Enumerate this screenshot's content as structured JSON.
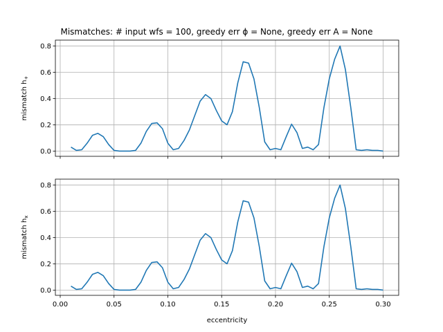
{
  "title": "Mismatches: # input wfs = 100, greedy err ϕ = None, greedy err A = None",
  "chart_data": [
    {
      "type": "line",
      "ylabel": "mismatch h+",
      "ylabel_main": "mismatch h",
      "ylabel_sub": "+",
      "xlabel": "",
      "xlim": [
        -0.0045,
        0.3145
      ],
      "ylim": [
        -0.04,
        0.845
      ],
      "xticks": [
        0.0,
        0.05,
        0.1,
        0.15,
        0.2,
        0.25,
        0.3
      ],
      "xtick_labels": [],
      "yticks": [
        0.0,
        0.2,
        0.4,
        0.6,
        0.8
      ],
      "ytick_labels": [
        "0.0",
        "0.2",
        "0.4",
        "0.6",
        "0.8"
      ],
      "grid": true,
      "color": "#1f77b4",
      "series": [
        {
          "x": [
            0.01,
            0.015,
            0.02,
            0.025,
            0.03,
            0.035,
            0.04,
            0.045,
            0.05,
            0.055,
            0.06,
            0.065,
            0.07,
            0.075,
            0.08,
            0.085,
            0.09,
            0.095,
            0.1,
            0.105,
            0.11,
            0.115,
            0.12,
            0.125,
            0.13,
            0.135,
            0.14,
            0.145,
            0.15,
            0.155,
            0.16,
            0.165,
            0.17,
            0.175,
            0.18,
            0.185,
            0.19,
            0.195,
            0.2,
            0.205,
            0.21,
            0.215,
            0.22,
            0.225,
            0.23,
            0.235,
            0.24,
            0.245,
            0.25,
            0.255,
            0.26,
            0.265,
            0.27,
            0.275,
            0.28,
            0.285,
            0.29,
            0.295,
            0.3
          ],
          "y": [
            0.03,
            0.005,
            0.01,
            0.06,
            0.12,
            0.135,
            0.11,
            0.05,
            0.005,
            0.0,
            0.0,
            0.0,
            0.005,
            0.06,
            0.15,
            0.21,
            0.215,
            0.17,
            0.06,
            0.01,
            0.02,
            0.08,
            0.16,
            0.27,
            0.38,
            0.43,
            0.4,
            0.31,
            0.23,
            0.2,
            0.3,
            0.52,
            0.68,
            0.67,
            0.55,
            0.33,
            0.07,
            0.01,
            0.02,
            0.01,
            0.11,
            0.205,
            0.14,
            0.02,
            0.03,
            0.01,
            0.05,
            0.33,
            0.55,
            0.7,
            0.8,
            0.62,
            0.33,
            0.01,
            0.005,
            0.01,
            0.005,
            0.005,
            0.0
          ]
        }
      ]
    },
    {
      "type": "line",
      "ylabel": "mismatch hx",
      "ylabel_main": "mismatch h",
      "ylabel_sub": "x",
      "xlabel": "eccentricity",
      "xlim": [
        -0.0045,
        0.3145
      ],
      "ylim": [
        -0.04,
        0.845
      ],
      "xticks": [
        0.0,
        0.05,
        0.1,
        0.15,
        0.2,
        0.25,
        0.3
      ],
      "xtick_labels": [
        "0.00",
        "0.05",
        "0.10",
        "0.15",
        "0.20",
        "0.25",
        "0.30"
      ],
      "yticks": [
        0.0,
        0.2,
        0.4,
        0.6,
        0.8
      ],
      "ytick_labels": [
        "0.0",
        "0.2",
        "0.4",
        "0.6",
        "0.8"
      ],
      "grid": true,
      "color": "#1f77b4",
      "series": [
        {
          "x": [
            0.01,
            0.015,
            0.02,
            0.025,
            0.03,
            0.035,
            0.04,
            0.045,
            0.05,
            0.055,
            0.06,
            0.065,
            0.07,
            0.075,
            0.08,
            0.085,
            0.09,
            0.095,
            0.1,
            0.105,
            0.11,
            0.115,
            0.12,
            0.125,
            0.13,
            0.135,
            0.14,
            0.145,
            0.15,
            0.155,
            0.16,
            0.165,
            0.17,
            0.175,
            0.18,
            0.185,
            0.19,
            0.195,
            0.2,
            0.205,
            0.21,
            0.215,
            0.22,
            0.225,
            0.23,
            0.235,
            0.24,
            0.245,
            0.25,
            0.255,
            0.26,
            0.265,
            0.27,
            0.275,
            0.28,
            0.285,
            0.29,
            0.295,
            0.3
          ],
          "y": [
            0.03,
            0.005,
            0.01,
            0.06,
            0.12,
            0.135,
            0.11,
            0.05,
            0.005,
            0.0,
            0.0,
            0.0,
            0.005,
            0.06,
            0.15,
            0.21,
            0.215,
            0.17,
            0.06,
            0.01,
            0.02,
            0.08,
            0.16,
            0.27,
            0.38,
            0.43,
            0.4,
            0.31,
            0.23,
            0.2,
            0.3,
            0.52,
            0.68,
            0.67,
            0.55,
            0.33,
            0.07,
            0.01,
            0.02,
            0.01,
            0.11,
            0.205,
            0.14,
            0.02,
            0.03,
            0.01,
            0.05,
            0.33,
            0.55,
            0.7,
            0.8,
            0.62,
            0.33,
            0.01,
            0.005,
            0.01,
            0.005,
            0.005,
            0.0
          ]
        }
      ]
    }
  ]
}
